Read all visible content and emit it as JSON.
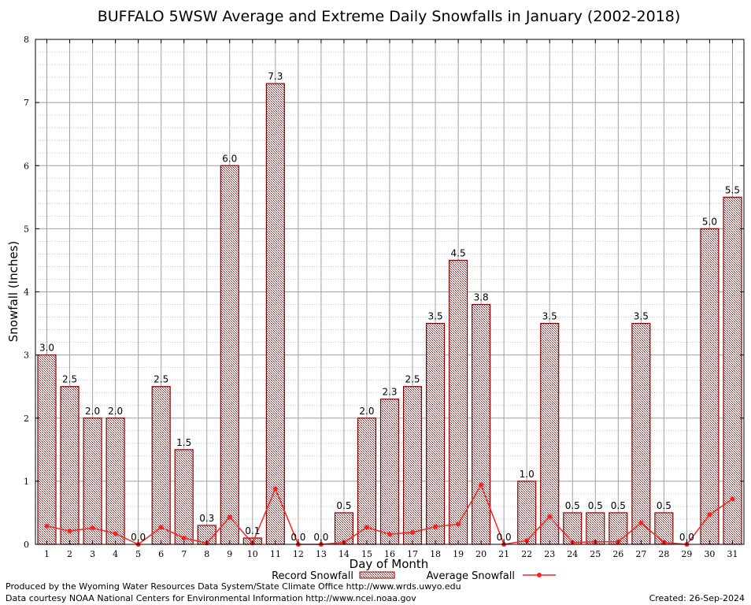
{
  "chart_data": {
    "type": "bar",
    "title": "BUFFALO 5WSW Average and Extreme Daily Snowfalls in January (2002-2018)",
    "xlabel": "Day of Month",
    "ylabel": "Snowfall (Inches)",
    "ylim": [
      0,
      8
    ],
    "yticks": [
      "0",
      "1",
      "2",
      "3",
      "4",
      "5",
      "6",
      "7",
      "8"
    ],
    "grid": true,
    "categories": [
      "1",
      "2",
      "3",
      "4",
      "5",
      "6",
      "7",
      "8",
      "9",
      "10",
      "11",
      "12",
      "13",
      "14",
      "15",
      "16",
      "17",
      "18",
      "19",
      "20",
      "21",
      "22",
      "23",
      "24",
      "25",
      "26",
      "27",
      "28",
      "29",
      "30",
      "31"
    ],
    "series": [
      {
        "name": "Record Snowfall",
        "type": "bar",
        "color": "#8b0000",
        "values": [
          3.0,
          2.5,
          2.0,
          2.0,
          0.0,
          2.5,
          1.5,
          0.3,
          6.0,
          0.1,
          7.3,
          0.0,
          0.0,
          0.5,
          2.0,
          2.3,
          2.5,
          3.5,
          4.5,
          3.8,
          0.0,
          1.0,
          3.5,
          0.5,
          0.5,
          0.5,
          3.5,
          0.5,
          0.0,
          5.0,
          5.5
        ],
        "labels": [
          "3.0",
          "2.5",
          "2.0",
          "2.0",
          "0.0",
          "2.5",
          "1.5",
          "0.3",
          "6.0",
          "0.1",
          "7.3",
          "0.0",
          "0.0",
          "0.5",
          "2.0",
          "2.3",
          "2.5",
          "3.5",
          "4.5",
          "3.8",
          "0.0",
          "1.0",
          "3.5",
          "0.5",
          "0.5",
          "0.5",
          "3.5",
          "0.5",
          "0.0",
          "5.0",
          "5.5"
        ]
      },
      {
        "name": "Average Snowfall",
        "type": "line",
        "color": "#ff2020",
        "values": [
          0.29,
          0.21,
          0.26,
          0.17,
          0.0,
          0.27,
          0.1,
          0.02,
          0.43,
          0.02,
          0.88,
          0.0,
          0.0,
          0.03,
          0.27,
          0.16,
          0.19,
          0.28,
          0.32,
          0.94,
          0.0,
          0.06,
          0.44,
          0.03,
          0.04,
          0.04,
          0.34,
          0.03,
          0.0,
          0.47,
          0.72
        ]
      }
    ],
    "legend_position": "bottom-center"
  },
  "footer": {
    "produced_by": "Produced by the Wyoming Water Resources Data System/State Climate Office http://www.wrds.uwyo.edu",
    "courtesy": "Data courtesy NOAA National Centers for Environmental Information http://www.ncei.noaa.gov",
    "created": "Created:  26-Sep-2024"
  }
}
